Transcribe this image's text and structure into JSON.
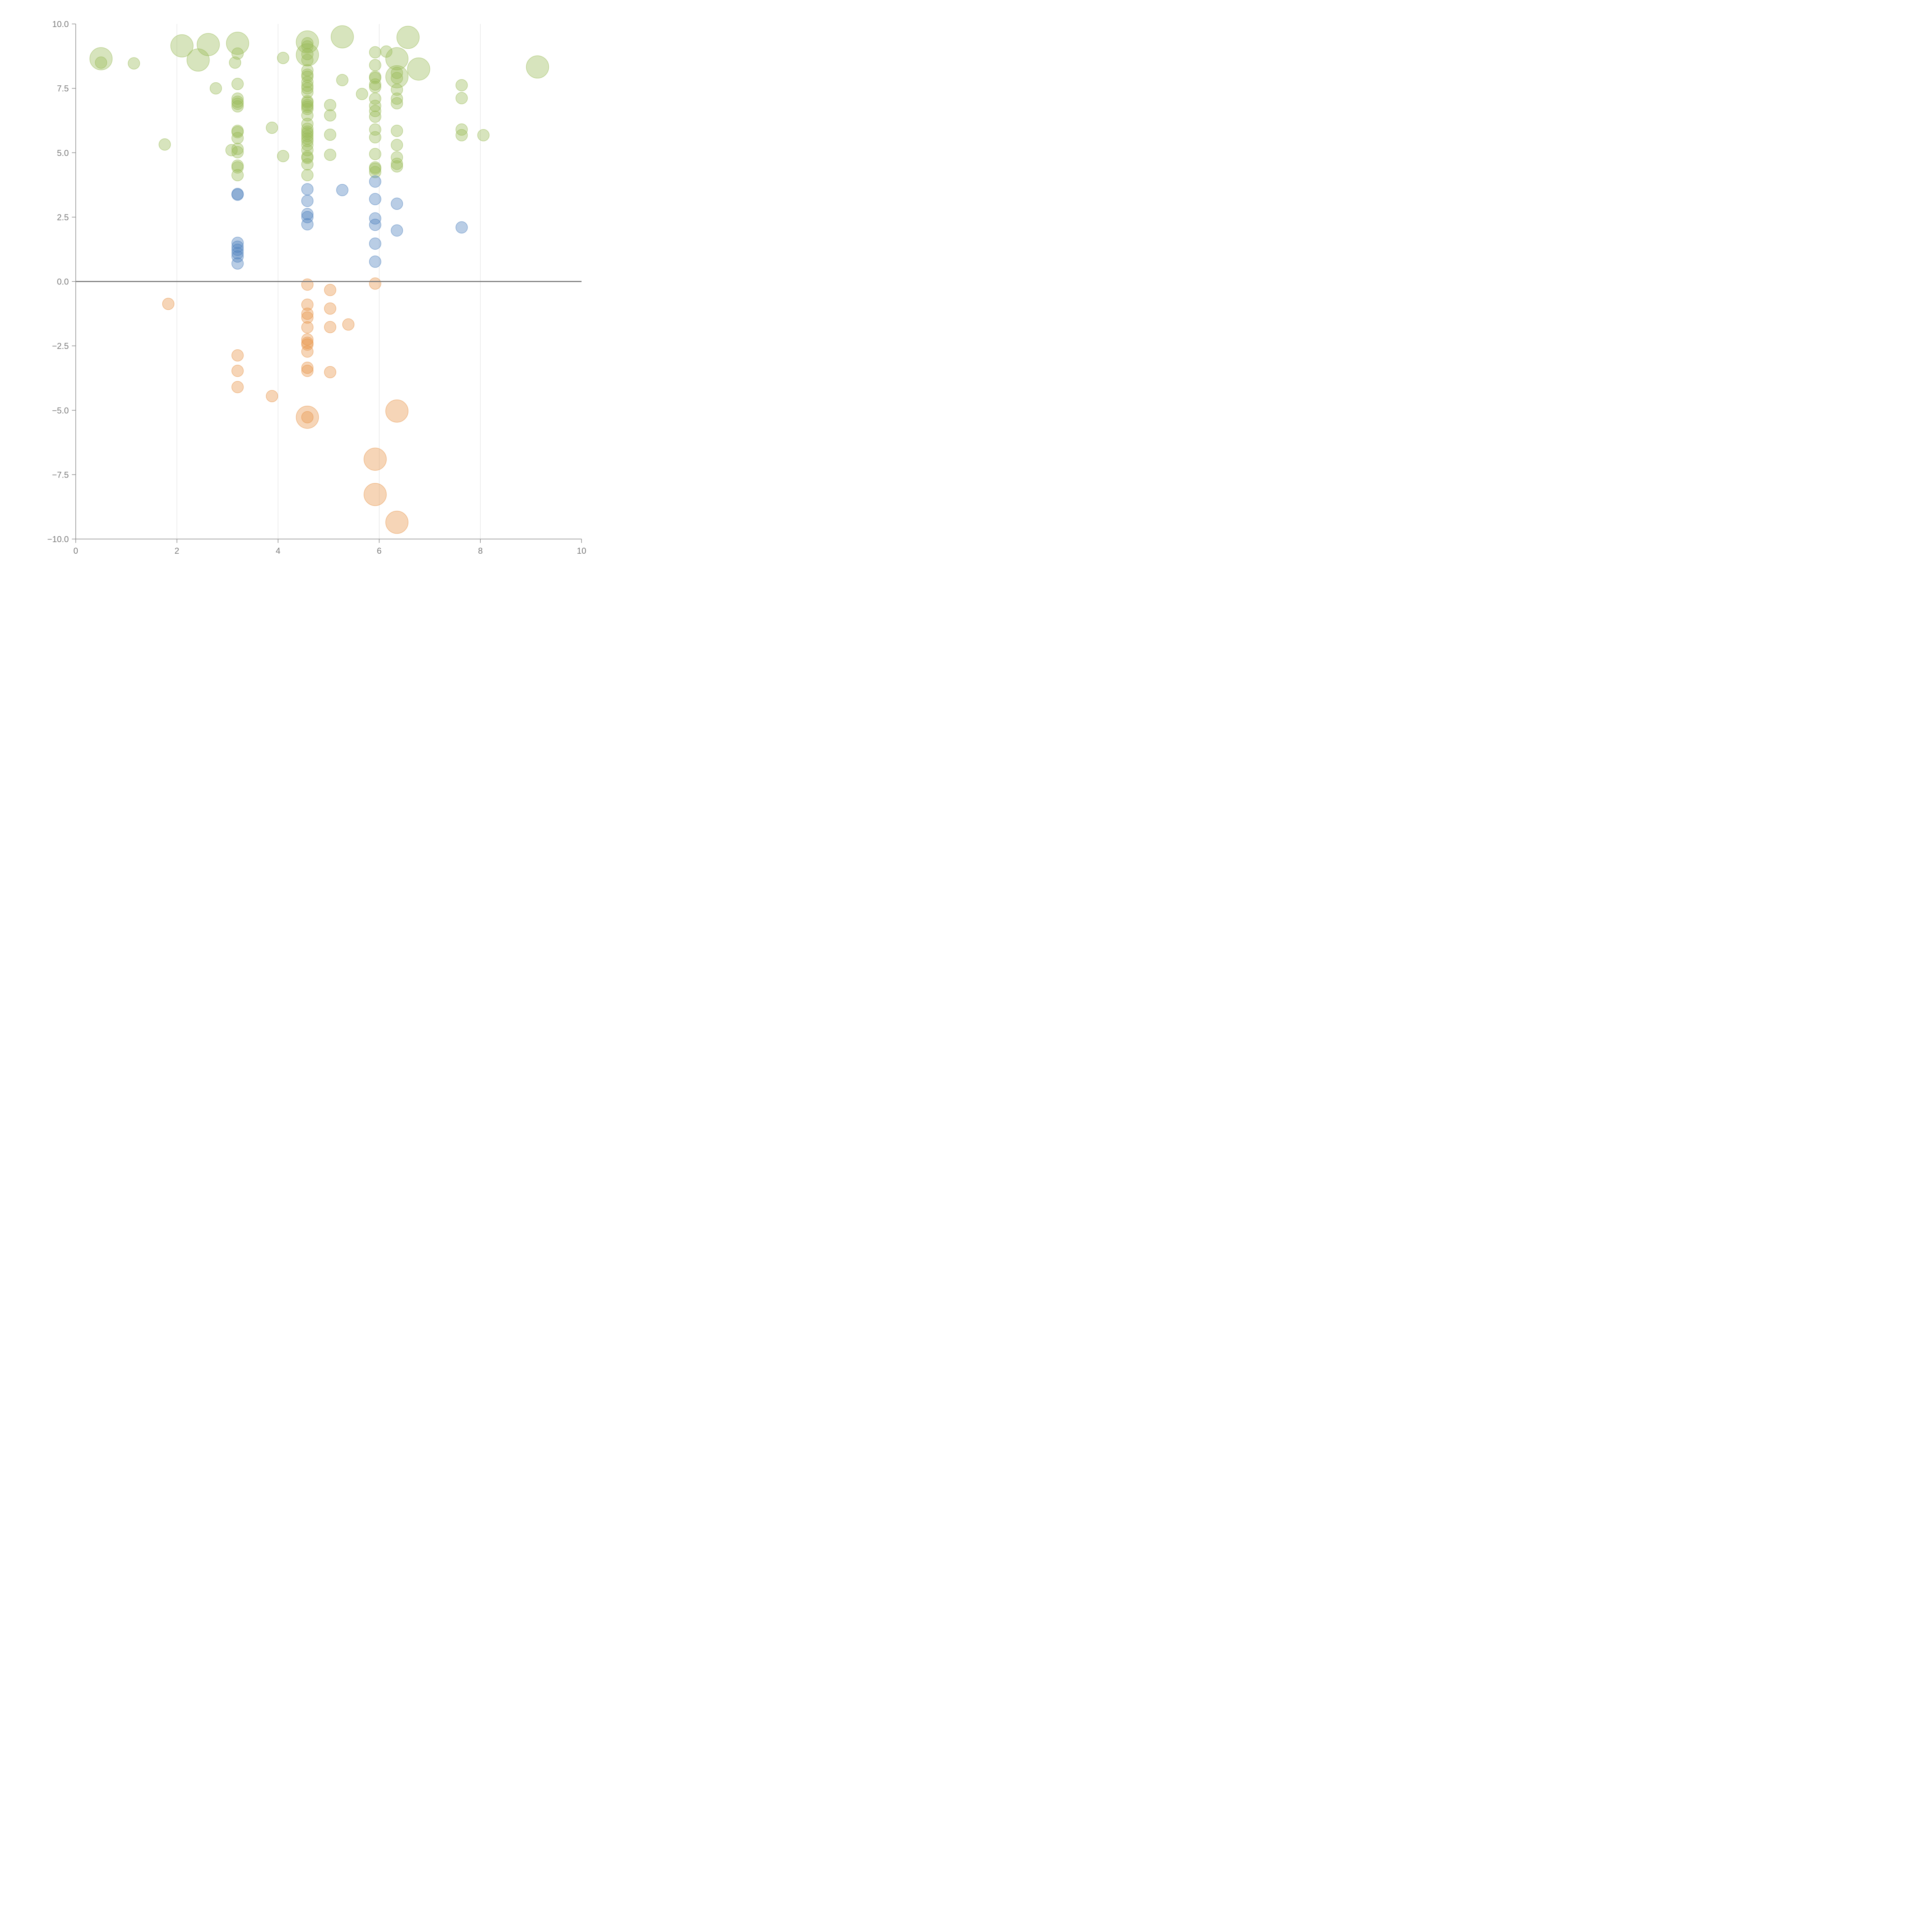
{
  "chart_data": {
    "type": "scatter",
    "title": "",
    "xlabel": "",
    "ylabel": "",
    "xlim": [
      0,
      10
    ],
    "ylim": [
      -10,
      10
    ],
    "x_ticks": [
      "0",
      "2",
      "4",
      "6",
      "8",
      "10"
    ],
    "y_ticks": [
      "10.0",
      "7.5",
      "5.0",
      "2.5",
      "0.0",
      "−2.5",
      "−5.0",
      "−7.5",
      "−10.0"
    ],
    "grid": "vertical",
    "colors": {
      "green": "#9bbb59",
      "blue": "#4f81bd",
      "orange": "#e8964a",
      "zero_line": "#808080"
    },
    "series": [
      {
        "name": "green",
        "color": "#9bbb59",
        "points": [
          {
            "x": 0.5,
            "y": 8.5,
            "r": 1
          },
          {
            "x": 1.15,
            "y": 8.47,
            "r": 1
          },
          {
            "x": 1.76,
            "y": 5.32,
            "r": 1
          },
          {
            "x": 2.77,
            "y": 7.5,
            "r": 1
          },
          {
            "x": 3.08,
            "y": 5.1,
            "r": 1
          },
          {
            "x": 3.15,
            "y": 8.5,
            "r": 1
          },
          {
            "x": 3.2,
            "y": 8.85,
            "r": 1
          },
          {
            "x": 3.2,
            "y": 7.67,
            "r": 1
          },
          {
            "x": 3.2,
            "y": 7.1,
            "r": 1
          },
          {
            "x": 3.2,
            "y": 6.98,
            "r": 1
          },
          {
            "x": 3.2,
            "y": 6.9,
            "r": 1
          },
          {
            "x": 3.2,
            "y": 6.8,
            "r": 1
          },
          {
            "x": 3.2,
            "y": 5.85,
            "r": 1
          },
          {
            "x": 3.2,
            "y": 5.8,
            "r": 1
          },
          {
            "x": 3.2,
            "y": 5.57,
            "r": 1
          },
          {
            "x": 3.2,
            "y": 5.15,
            "r": 1
          },
          {
            "x": 3.2,
            "y": 5.02,
            "r": 1
          },
          {
            "x": 3.2,
            "y": 4.5,
            "r": 1
          },
          {
            "x": 3.2,
            "y": 4.43,
            "r": 1
          },
          {
            "x": 3.2,
            "y": 4.13,
            "r": 1
          },
          {
            "x": 3.88,
            "y": 5.97,
            "r": 1
          },
          {
            "x": 4.1,
            "y": 8.68,
            "r": 1
          },
          {
            "x": 4.1,
            "y": 4.87,
            "r": 1
          },
          {
            "x": 4.58,
            "y": 9.25,
            "r": 1
          },
          {
            "x": 4.58,
            "y": 9.13,
            "r": 1
          },
          {
            "x": 4.58,
            "y": 8.83,
            "r": 1
          },
          {
            "x": 4.58,
            "y": 8.6,
            "r": 1
          },
          {
            "x": 4.58,
            "y": 8.2,
            "r": 1
          },
          {
            "x": 4.58,
            "y": 8.03,
            "r": 1
          },
          {
            "x": 4.58,
            "y": 7.95,
            "r": 1
          },
          {
            "x": 4.58,
            "y": 7.75,
            "r": 1
          },
          {
            "x": 4.58,
            "y": 7.6,
            "r": 1
          },
          {
            "x": 4.58,
            "y": 7.5,
            "r": 1
          },
          {
            "x": 4.58,
            "y": 7.35,
            "r": 1
          },
          {
            "x": 4.58,
            "y": 7.0,
            "r": 1
          },
          {
            "x": 4.58,
            "y": 6.95,
            "r": 1
          },
          {
            "x": 4.58,
            "y": 6.85,
            "r": 1
          },
          {
            "x": 4.58,
            "y": 6.78,
            "r": 1
          },
          {
            "x": 4.58,
            "y": 6.7,
            "r": 1
          },
          {
            "x": 4.58,
            "y": 6.45,
            "r": 1
          },
          {
            "x": 4.58,
            "y": 6.12,
            "r": 1
          },
          {
            "x": 4.58,
            "y": 5.93,
            "r": 1
          },
          {
            "x": 4.58,
            "y": 5.82,
            "r": 1
          },
          {
            "x": 4.58,
            "y": 5.75,
            "r": 1
          },
          {
            "x": 4.58,
            "y": 5.65,
            "r": 1
          },
          {
            "x": 4.58,
            "y": 5.55,
            "r": 1
          },
          {
            "x": 4.58,
            "y": 5.45,
            "r": 1
          },
          {
            "x": 4.58,
            "y": 5.3,
            "r": 1
          },
          {
            "x": 4.58,
            "y": 5.1,
            "r": 1
          },
          {
            "x": 4.58,
            "y": 4.85,
            "r": 1
          },
          {
            "x": 4.58,
            "y": 4.8,
            "r": 1
          },
          {
            "x": 4.58,
            "y": 4.55,
            "r": 1
          },
          {
            "x": 4.58,
            "y": 4.13,
            "r": 1
          },
          {
            "x": 5.03,
            "y": 6.85,
            "r": 1
          },
          {
            "x": 5.03,
            "y": 6.45,
            "r": 1
          },
          {
            "x": 5.03,
            "y": 5.7,
            "r": 1
          },
          {
            "x": 5.03,
            "y": 4.92,
            "r": 1
          },
          {
            "x": 5.27,
            "y": 7.82,
            "r": 1
          },
          {
            "x": 5.66,
            "y": 7.28,
            "r": 1
          },
          {
            "x": 5.92,
            "y": 8.9,
            "r": 1
          },
          {
            "x": 5.92,
            "y": 8.4,
            "r": 1
          },
          {
            "x": 5.92,
            "y": 7.95,
            "r": 1
          },
          {
            "x": 5.92,
            "y": 7.9,
            "r": 1
          },
          {
            "x": 5.92,
            "y": 7.65,
            "r": 1
          },
          {
            "x": 5.92,
            "y": 7.55,
            "r": 1
          },
          {
            "x": 5.92,
            "y": 7.1,
            "r": 1
          },
          {
            "x": 5.92,
            "y": 6.82,
            "r": 1
          },
          {
            "x": 5.92,
            "y": 6.62,
            "r": 1
          },
          {
            "x": 5.92,
            "y": 6.4,
            "r": 1
          },
          {
            "x": 5.92,
            "y": 5.9,
            "r": 1
          },
          {
            "x": 5.92,
            "y": 5.6,
            "r": 1
          },
          {
            "x": 5.92,
            "y": 4.95,
            "r": 1
          },
          {
            "x": 5.92,
            "y": 4.43,
            "r": 1
          },
          {
            "x": 5.92,
            "y": 4.38,
            "r": 1
          },
          {
            "x": 5.92,
            "y": 4.25,
            "r": 1
          },
          {
            "x": 6.14,
            "y": 8.93,
            "r": 1
          },
          {
            "x": 6.35,
            "y": 8.1,
            "r": 1
          },
          {
            "x": 6.35,
            "y": 7.9,
            "r": 1
          },
          {
            "x": 6.35,
            "y": 7.45,
            "r": 1
          },
          {
            "x": 6.35,
            "y": 7.1,
            "r": 1
          },
          {
            "x": 6.35,
            "y": 6.92,
            "r": 1
          },
          {
            "x": 6.35,
            "y": 5.85,
            "r": 1
          },
          {
            "x": 6.35,
            "y": 5.3,
            "r": 1
          },
          {
            "x": 6.35,
            "y": 4.82,
            "r": 1
          },
          {
            "x": 6.35,
            "y": 4.57,
            "r": 1
          },
          {
            "x": 6.35,
            "y": 4.47,
            "r": 1
          },
          {
            "x": 7.63,
            "y": 7.62,
            "r": 1
          },
          {
            "x": 7.63,
            "y": 7.12,
            "r": 1
          },
          {
            "x": 7.63,
            "y": 5.9,
            "r": 1
          },
          {
            "x": 7.63,
            "y": 5.68,
            "r": 1
          },
          {
            "x": 8.06,
            "y": 5.68,
            "r": 1
          },
          {
            "x": 0.5,
            "y": 8.65,
            "r": 2
          },
          {
            "x": 2.1,
            "y": 9.15,
            "r": 2
          },
          {
            "x": 2.42,
            "y": 8.6,
            "r": 2
          },
          {
            "x": 2.62,
            "y": 9.2,
            "r": 2
          },
          {
            "x": 3.2,
            "y": 9.25,
            "r": 2
          },
          {
            "x": 4.58,
            "y": 9.3,
            "r": 2
          },
          {
            "x": 4.58,
            "y": 8.8,
            "r": 2
          },
          {
            "x": 5.27,
            "y": 9.5,
            "r": 2
          },
          {
            "x": 6.35,
            "y": 8.65,
            "r": 2
          },
          {
            "x": 6.35,
            "y": 7.95,
            "r": 2
          },
          {
            "x": 6.57,
            "y": 9.48,
            "r": 2
          },
          {
            "x": 6.78,
            "y": 8.25,
            "r": 2
          },
          {
            "x": 9.13,
            "y": 8.33,
            "r": 2
          }
        ]
      },
      {
        "name": "blue",
        "color": "#4f81bd",
        "points": [
          {
            "x": 3.2,
            "y": 3.4,
            "r": 1
          },
          {
            "x": 3.2,
            "y": 3.37,
            "r": 1
          },
          {
            "x": 3.2,
            "y": 1.5,
            "r": 1
          },
          {
            "x": 3.2,
            "y": 1.35,
            "r": 1
          },
          {
            "x": 3.2,
            "y": 1.23,
            "r": 1
          },
          {
            "x": 3.2,
            "y": 1.1,
            "r": 1
          },
          {
            "x": 3.2,
            "y": 0.97,
            "r": 1
          },
          {
            "x": 3.2,
            "y": 0.7,
            "r": 1
          },
          {
            "x": 4.58,
            "y": 3.58,
            "r": 1
          },
          {
            "x": 4.58,
            "y": 3.13,
            "r": 1
          },
          {
            "x": 4.58,
            "y": 2.62,
            "r": 1
          },
          {
            "x": 4.58,
            "y": 2.5,
            "r": 1
          },
          {
            "x": 4.58,
            "y": 2.22,
            "r": 1
          },
          {
            "x": 5.27,
            "y": 3.55,
            "r": 1
          },
          {
            "x": 5.92,
            "y": 3.88,
            "r": 1
          },
          {
            "x": 5.92,
            "y": 3.2,
            "r": 1
          },
          {
            "x": 5.92,
            "y": 2.45,
            "r": 1
          },
          {
            "x": 5.92,
            "y": 2.2,
            "r": 1
          },
          {
            "x": 5.92,
            "y": 1.47,
            "r": 1
          },
          {
            "x": 5.92,
            "y": 0.77,
            "r": 1
          },
          {
            "x": 6.35,
            "y": 3.02,
            "r": 1
          },
          {
            "x": 6.35,
            "y": 1.98,
            "r": 1
          },
          {
            "x": 7.63,
            "y": 2.1,
            "r": 1
          }
        ]
      },
      {
        "name": "orange",
        "color": "#e8964a",
        "points": [
          {
            "x": 1.83,
            "y": -0.87,
            "r": 1
          },
          {
            "x": 3.2,
            "y": -2.87,
            "r": 1
          },
          {
            "x": 3.2,
            "y": -3.47,
            "r": 1
          },
          {
            "x": 3.2,
            "y": -4.1,
            "r": 1
          },
          {
            "x": 3.88,
            "y": -4.45,
            "r": 1
          },
          {
            "x": 4.58,
            "y": -0.12,
            "r": 1
          },
          {
            "x": 4.58,
            "y": -0.9,
            "r": 1
          },
          {
            "x": 4.58,
            "y": -1.25,
            "r": 1
          },
          {
            "x": 4.58,
            "y": -1.4,
            "r": 1
          },
          {
            "x": 4.58,
            "y": -1.78,
            "r": 1
          },
          {
            "x": 4.58,
            "y": -2.25,
            "r": 1
          },
          {
            "x": 4.58,
            "y": -2.38,
            "r": 1
          },
          {
            "x": 4.58,
            "y": -2.45,
            "r": 1
          },
          {
            "x": 4.58,
            "y": -2.72,
            "r": 1
          },
          {
            "x": 4.58,
            "y": -3.35,
            "r": 1
          },
          {
            "x": 4.58,
            "y": -3.47,
            "r": 1
          },
          {
            "x": 4.58,
            "y": -5.27,
            "r": 1
          },
          {
            "x": 5.03,
            "y": -0.33,
            "r": 1
          },
          {
            "x": 5.03,
            "y": -1.05,
            "r": 1
          },
          {
            "x": 5.03,
            "y": -1.77,
            "r": 1
          },
          {
            "x": 5.03,
            "y": -3.52,
            "r": 1
          },
          {
            "x": 5.39,
            "y": -1.67,
            "r": 1
          },
          {
            "x": 5.92,
            "y": -0.08,
            "r": 1
          },
          {
            "x": 4.58,
            "y": -5.27,
            "r": 2
          },
          {
            "x": 6.35,
            "y": -5.03,
            "r": 2
          },
          {
            "x": 5.92,
            "y": -6.9,
            "r": 2
          },
          {
            "x": 5.92,
            "y": -8.27,
            "r": 2
          },
          {
            "x": 6.35,
            "y": -9.35,
            "r": 2
          }
        ]
      }
    ]
  }
}
